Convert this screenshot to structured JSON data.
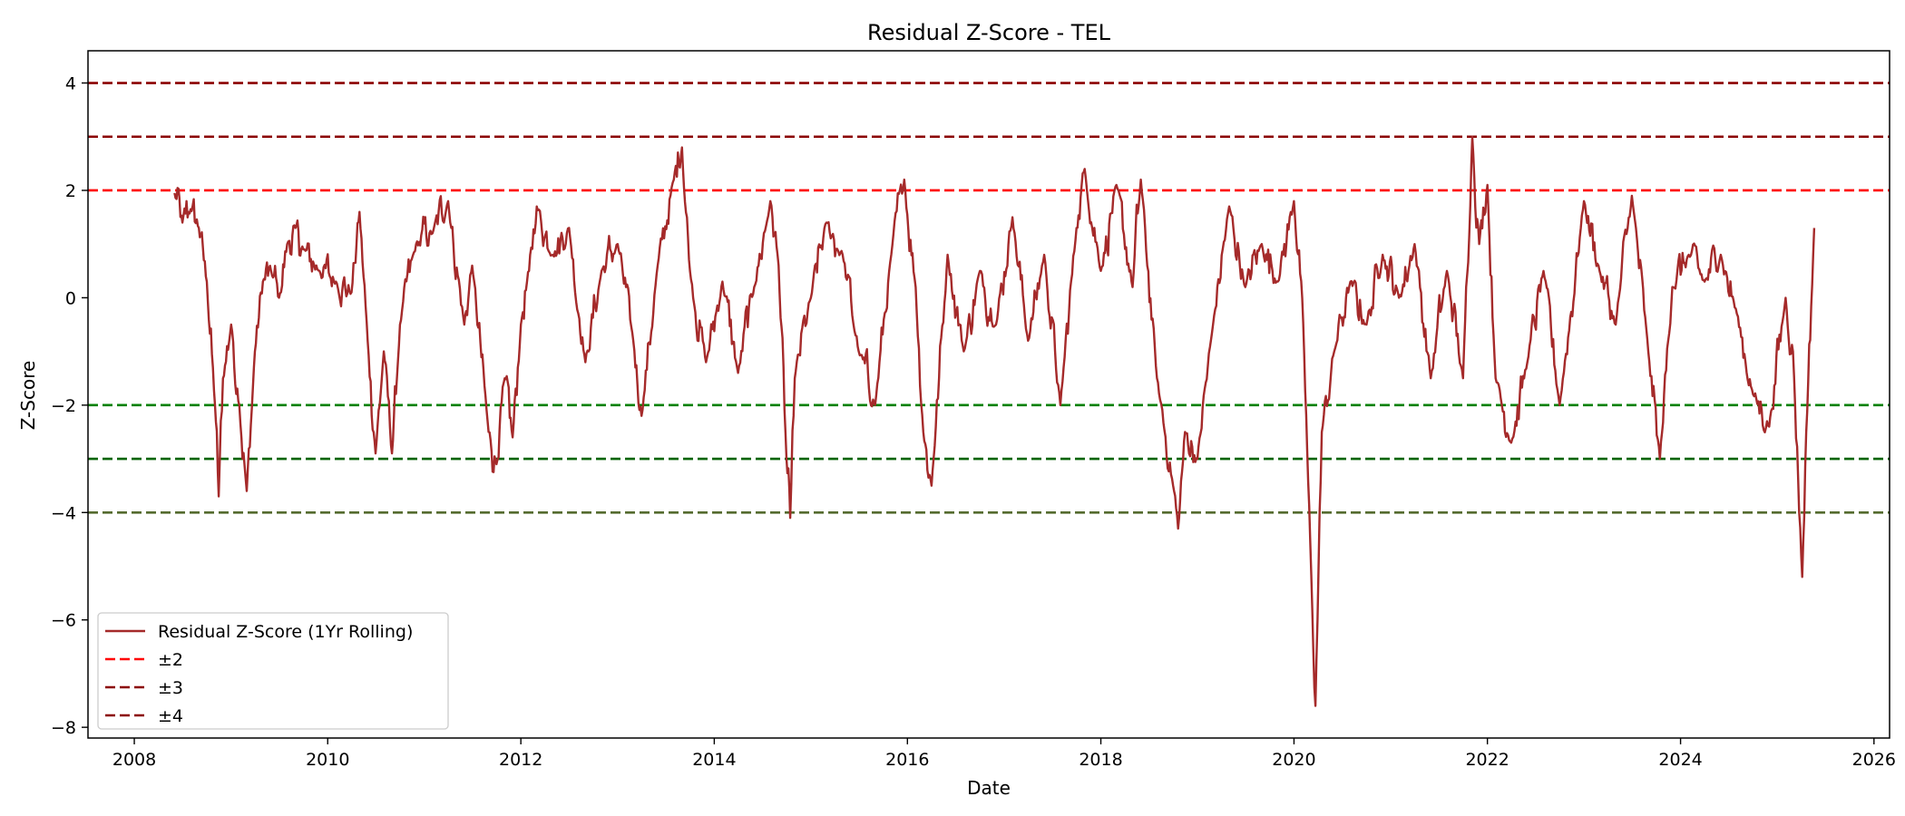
{
  "chart_data": {
    "type": "line",
    "title": "Residual Z-Score - TEL",
    "xlabel": "Date",
    "ylabel": "Z-Score",
    "xlim": [
      "2007-07-10",
      "2026-03-01"
    ],
    "ylim": [
      -8.2,
      4.6
    ],
    "x_ticks": [
      "2008",
      "2010",
      "2012",
      "2014",
      "2016",
      "2018",
      "2020",
      "2022",
      "2024",
      "2026"
    ],
    "y_ticks": [
      -8,
      -6,
      -4,
      -2,
      0,
      2,
      4
    ],
    "grid": false,
    "legend_position": "lower-left",
    "series": [
      {
        "name": "Residual Z-Score (1Yr Rolling)",
        "color": "#a52a2a",
        "style": "solid",
        "points": [
          [
            "2008-06-01",
            1.95
          ],
          [
            "2008-07-01",
            1.4
          ],
          [
            "2008-08-01",
            1.65
          ],
          [
            "2008-09-01",
            1.3
          ],
          [
            "2008-10-01",
            0.3
          ],
          [
            "2008-11-01",
            -2.0
          ],
          [
            "2008-11-15",
            -3.7
          ],
          [
            "2008-12-01",
            -1.5
          ],
          [
            "2009-01-01",
            -0.5
          ],
          [
            "2009-02-01",
            -2.0
          ],
          [
            "2009-03-01",
            -3.6
          ],
          [
            "2009-04-01",
            -1.0
          ],
          [
            "2009-05-01",
            0.3
          ],
          [
            "2009-06-01",
            0.5
          ],
          [
            "2009-07-01",
            0.0
          ],
          [
            "2009-08-01",
            1.0
          ],
          [
            "2009-09-01",
            1.3
          ],
          [
            "2009-10-01",
            0.9
          ],
          [
            "2009-12-01",
            0.5
          ],
          [
            "2010-02-01",
            0.3
          ],
          [
            "2010-04-01",
            0.1
          ],
          [
            "2010-05-01",
            1.6
          ],
          [
            "2010-06-01",
            -0.8
          ],
          [
            "2010-07-01",
            -2.9
          ],
          [
            "2010-08-01",
            -1.0
          ],
          [
            "2010-09-01",
            -2.9
          ],
          [
            "2010-10-01",
            -0.5
          ],
          [
            "2010-12-01",
            1.0
          ],
          [
            "2011-02-01",
            1.2
          ],
          [
            "2011-04-01",
            1.8
          ],
          [
            "2011-06-01",
            -0.5
          ],
          [
            "2011-07-01",
            0.6
          ],
          [
            "2011-09-01",
            -2.5
          ],
          [
            "2011-10-01",
            -3.1
          ],
          [
            "2011-11-01",
            -1.5
          ],
          [
            "2011-12-01",
            -2.6
          ],
          [
            "2012-01-01",
            -0.5
          ],
          [
            "2012-02-01",
            0.5
          ],
          [
            "2012-03-01",
            1.7
          ],
          [
            "2012-05-01",
            0.8
          ],
          [
            "2012-07-01",
            1.3
          ],
          [
            "2012-09-01",
            -1.2
          ],
          [
            "2012-11-01",
            0.5
          ],
          [
            "2013-01-01",
            1.0
          ],
          [
            "2013-03-01",
            -0.8
          ],
          [
            "2013-04-01",
            -2.2
          ],
          [
            "2013-06-01",
            0.6
          ],
          [
            "2013-08-01",
            2.2
          ],
          [
            "2013-09-01",
            2.8
          ],
          [
            "2013-10-01",
            0.5
          ],
          [
            "2013-12-01",
            -1.2
          ],
          [
            "2014-02-01",
            0.3
          ],
          [
            "2014-04-01",
            -1.4
          ],
          [
            "2014-06-01",
            0.2
          ],
          [
            "2014-08-01",
            1.8
          ],
          [
            "2014-09-01",
            0.6
          ],
          [
            "2014-10-01",
            -3.0
          ],
          [
            "2014-10-15",
            -4.1
          ],
          [
            "2014-11-01",
            -1.5
          ],
          [
            "2015-01-01",
            0.0
          ],
          [
            "2015-03-01",
            1.4
          ],
          [
            "2015-05-01",
            0.8
          ],
          [
            "2015-07-01",
            -1.0
          ],
          [
            "2015-09-01",
            -2.0
          ],
          [
            "2015-11-01",
            0.8
          ],
          [
            "2015-12-20",
            2.2
          ],
          [
            "2016-02-01",
            0.2
          ],
          [
            "2016-03-01",
            -2.5
          ],
          [
            "2016-04-01",
            -3.5
          ],
          [
            "2016-06-01",
            0.8
          ],
          [
            "2016-08-01",
            -1.0
          ],
          [
            "2016-10-01",
            0.5
          ],
          [
            "2016-12-01",
            -0.5
          ],
          [
            "2017-02-01",
            1.5
          ],
          [
            "2017-04-01",
            -0.8
          ],
          [
            "2017-06-01",
            0.8
          ],
          [
            "2017-08-01",
            -2.0
          ],
          [
            "2017-10-01",
            1.3
          ],
          [
            "2017-11-01",
            2.4
          ],
          [
            "2018-01-01",
            0.5
          ],
          [
            "2018-03-01",
            2.1
          ],
          [
            "2018-05-01",
            0.2
          ],
          [
            "2018-06-01",
            2.2
          ],
          [
            "2018-08-01",
            -1.5
          ],
          [
            "2018-10-01",
            -3.5
          ],
          [
            "2018-10-20",
            -4.3
          ],
          [
            "2018-11-15",
            -2.5
          ],
          [
            "2019-01-01",
            -3.0
          ],
          [
            "2019-03-01",
            -0.5
          ],
          [
            "2019-05-01",
            1.7
          ],
          [
            "2019-07-01",
            0.2
          ],
          [
            "2019-09-01",
            1.0
          ],
          [
            "2019-11-01",
            0.3
          ],
          [
            "2020-01-01",
            1.8
          ],
          [
            "2020-02-01",
            0.0
          ],
          [
            "2020-03-10",
            -5.8
          ],
          [
            "2020-03-22",
            -7.6
          ],
          [
            "2020-04-15",
            -2.5
          ],
          [
            "2020-06-01",
            -1.0
          ],
          [
            "2020-08-01",
            0.3
          ],
          [
            "2020-10-01",
            -0.5
          ],
          [
            "2020-12-01",
            0.8
          ],
          [
            "2021-02-01",
            0.0
          ],
          [
            "2021-04-01",
            1.0
          ],
          [
            "2021-06-01",
            -1.5
          ],
          [
            "2021-08-01",
            0.5
          ],
          [
            "2021-10-01",
            -1.5
          ],
          [
            "2021-11-05",
            3.0
          ],
          [
            "2021-12-01",
            1.0
          ],
          [
            "2022-01-01",
            2.1
          ],
          [
            "2022-02-01",
            -1.5
          ],
          [
            "2022-04-01",
            -2.7
          ],
          [
            "2022-06-01",
            -1.2
          ],
          [
            "2022-08-01",
            0.5
          ],
          [
            "2022-10-01",
            -2.0
          ],
          [
            "2023-01-01",
            1.8
          ],
          [
            "2023-03-01",
            0.5
          ],
          [
            "2023-05-01",
            -0.5
          ],
          [
            "2023-07-01",
            1.9
          ],
          [
            "2023-09-01",
            -1.0
          ],
          [
            "2023-10-15",
            -3.0
          ],
          [
            "2023-12-01",
            0.2
          ],
          [
            "2024-02-01",
            0.8
          ],
          [
            "2024-04-01",
            0.3
          ],
          [
            "2024-06-01",
            0.8
          ],
          [
            "2024-08-01",
            -0.3
          ],
          [
            "2024-10-01",
            -1.8
          ],
          [
            "2024-12-01",
            -2.4
          ],
          [
            "2025-02-01",
            0.0
          ],
          [
            "2025-03-01",
            -1.0
          ],
          [
            "2025-04-05",
            -5.2
          ],
          [
            "2025-04-20",
            -2.5
          ],
          [
            "2025-05-20",
            1.3
          ]
        ]
      }
    ],
    "reference_lines": [
      {
        "y": 2,
        "color": "#ff0000",
        "style": "dashed"
      },
      {
        "y": 3,
        "color": "#8b0000",
        "style": "dashed"
      },
      {
        "y": 4,
        "color": "#8b0000",
        "style": "dashed"
      },
      {
        "y": -2,
        "color": "#008000",
        "style": "dashed"
      },
      {
        "y": -3,
        "color": "#006400",
        "style": "dashed"
      },
      {
        "y": -4,
        "color": "#556b2f",
        "style": "dashed"
      }
    ],
    "legend": [
      {
        "label": "Residual Z-Score (1Yr Rolling)",
        "color": "#a52a2a",
        "style": "solid"
      },
      {
        "label": "±2",
        "color": "#ff0000",
        "style": "dashed"
      },
      {
        "label": "±3",
        "color": "#8b0000",
        "style": "dashed"
      },
      {
        "label": "±4",
        "color": "#8b0000",
        "style": "dashed"
      }
    ]
  }
}
